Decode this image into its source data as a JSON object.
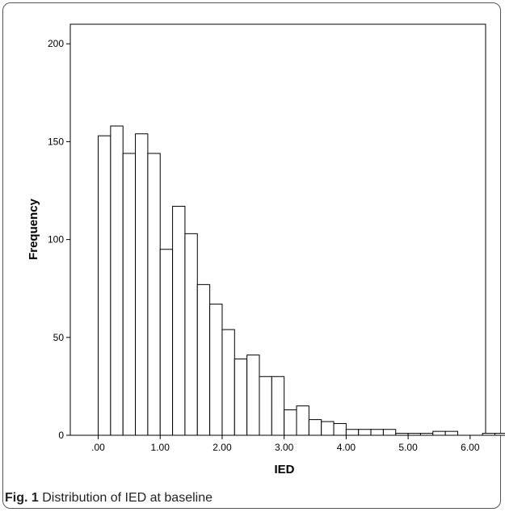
{
  "chart_data": {
    "type": "bar",
    "xlabel": "IED",
    "ylabel": "Frequency",
    "xlim": [
      -0.45,
      6.25
    ],
    "ylim": [
      0,
      210
    ],
    "x_ticks": [
      ".00",
      "1.00",
      "2.00",
      "3.00",
      "4.00",
      "5.00",
      "6.00"
    ],
    "y_ticks": [
      "0",
      "50",
      "100",
      "150",
      "200"
    ],
    "bin_width": 0.2,
    "bin_start": 0.0,
    "values": [
      153,
      158,
      144,
      154,
      144,
      95,
      117,
      103,
      77,
      67,
      54,
      39,
      41,
      30,
      30,
      13,
      15,
      8,
      7,
      6,
      3,
      3,
      3,
      3,
      1,
      1,
      1,
      2,
      2,
      0,
      0,
      1,
      1
    ]
  },
  "caption": {
    "label": "Fig. 1",
    "text": " Distribution of IED at baseline"
  }
}
